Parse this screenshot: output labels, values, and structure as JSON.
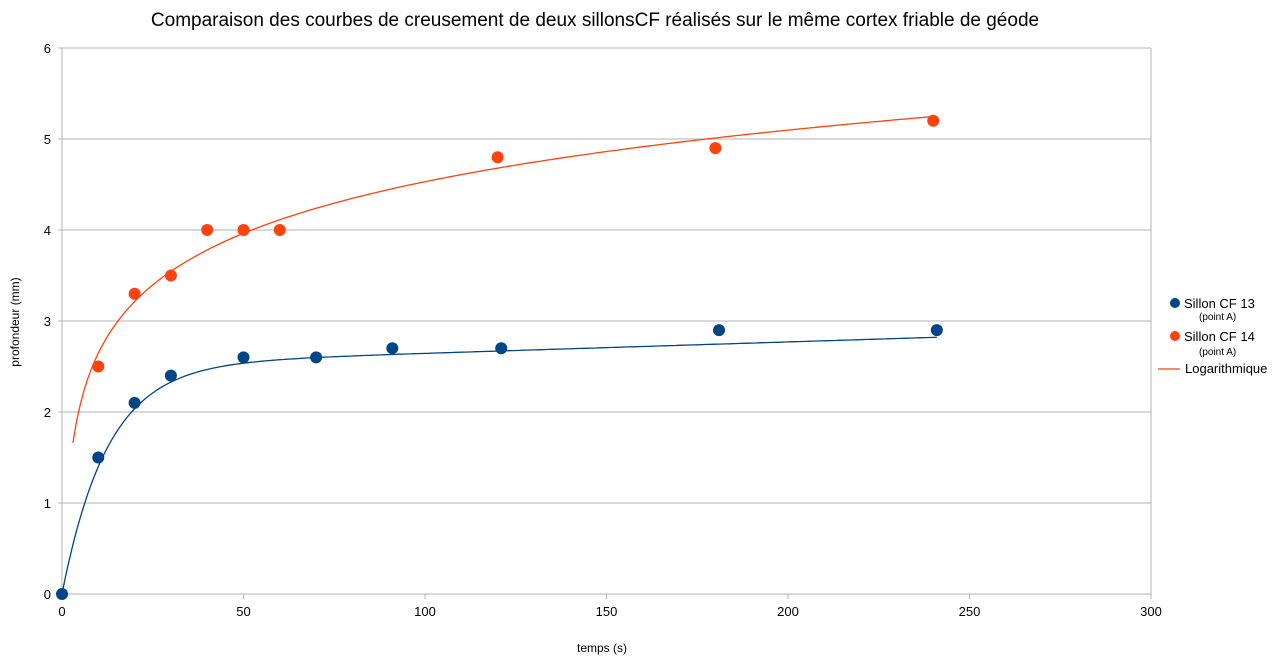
{
  "chart_data": {
    "type": "scatter",
    "title": "Comparaison des courbes de creusement de deux sillonsCF réalisés sur le même cortex friable de géode",
    "xlabel": "temps (s)",
    "ylabel": "profondeur (mm)",
    "xlim": [
      0,
      300
    ],
    "ylim": [
      0,
      6
    ],
    "xticks": [
      0,
      50,
      100,
      150,
      200,
      250,
      300
    ],
    "yticks": [
      0,
      1,
      2,
      3,
      4,
      5,
      6
    ],
    "grid": "horizontal",
    "legend_position": "right",
    "series": [
      {
        "name": "Sillon CF 13",
        "sub_label": "(point A)",
        "color": "#004586",
        "x": [
          0,
          10,
          20,
          30,
          50,
          70,
          91,
          121,
          181,
          241
        ],
        "y": [
          0,
          1.5,
          2.1,
          2.4,
          2.6,
          2.6,
          2.7,
          2.7,
          2.9,
          2.9
        ]
      },
      {
        "name": "Sillon CF 14",
        "sub_label": "(point A)",
        "color": "#ff420e",
        "x": [
          10,
          20,
          30,
          40,
          50,
          60,
          120,
          180,
          240
        ],
        "y": [
          2.5,
          3.3,
          3.5,
          4.0,
          4.0,
          4.0,
          4.8,
          4.9,
          5.2
        ]
      }
    ],
    "trendlines": [
      {
        "series": "Sillon CF 14",
        "name": "Logarithmique",
        "type": "log",
        "color": "#ff420e"
      },
      {
        "series": "Sillon CF 13",
        "type": "saturation",
        "color": "#004586"
      }
    ]
  }
}
